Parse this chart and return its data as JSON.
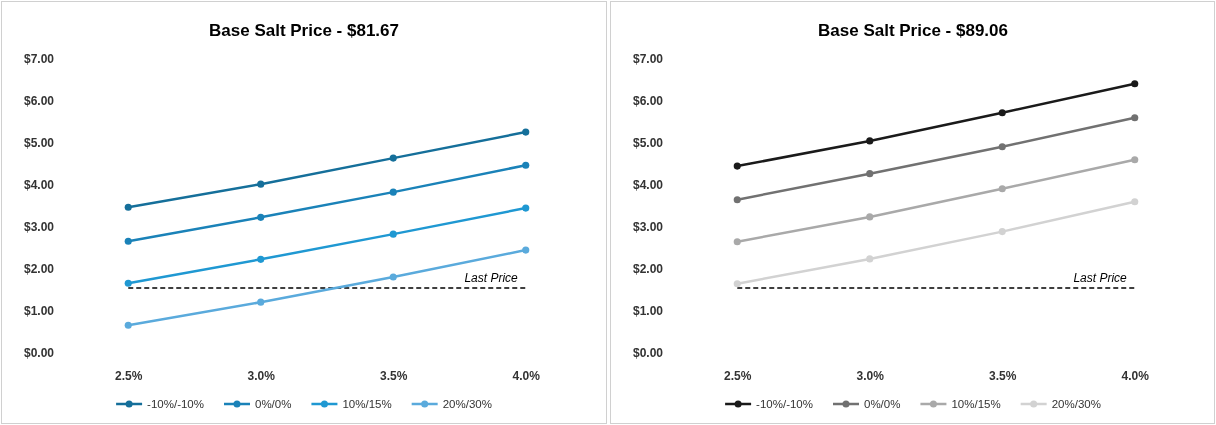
{
  "chart_data": [
    {
      "type": "line",
      "title": "Base Salt Price - $81.67",
      "categories": [
        "2.5%",
        "3.0%",
        "3.5%",
        "4.0%"
      ],
      "series": [
        {
          "name": "-10%/-10%",
          "color": "#156f9a",
          "values": [
            3.47,
            4.02,
            4.64,
            5.26
          ]
        },
        {
          "name": "0%/0%",
          "color": "#1a82b8",
          "values": [
            2.66,
            3.23,
            3.83,
            4.47
          ]
        },
        {
          "name": "10%/15%",
          "color": "#1f98d2",
          "values": [
            1.66,
            2.23,
            2.83,
            3.45
          ]
        },
        {
          "name": "20%/30%",
          "color": "#5aaadc",
          "values": [
            0.66,
            1.21,
            1.81,
            2.45
          ]
        }
      ],
      "ylim": [
        0,
        7
      ],
      "yticks": [
        {
          "value": 0,
          "label": "$0.00"
        },
        {
          "value": 1,
          "label": "$1.00"
        },
        {
          "value": 2,
          "label": "$2.00"
        },
        {
          "value": 3,
          "label": "$3.00"
        },
        {
          "value": 4,
          "label": "$4.00"
        },
        {
          "value": 5,
          "label": "$5.00"
        },
        {
          "value": 6,
          "label": "$6.00"
        },
        {
          "value": 7,
          "label": "$7.00"
        }
      ],
      "ref_lines": [
        {
          "axis": "y",
          "value": 1.55,
          "label": "Last Price",
          "color": "#000000",
          "line_style": "dashed"
        }
      ],
      "grid": false,
      "legend": "bottom",
      "marker": "circle",
      "line_style": "solid"
    },
    {
      "type": "line",
      "title": "Base Salt Price - $89.06",
      "categories": [
        "2.5%",
        "3.0%",
        "3.5%",
        "4.0%"
      ],
      "series": [
        {
          "name": "-10%/-10%",
          "color": "#1a1a1a",
          "values": [
            4.45,
            5.05,
            5.72,
            6.41
          ]
        },
        {
          "name": "0%/0%",
          "color": "#717171",
          "values": [
            3.65,
            4.27,
            4.91,
            5.6
          ]
        },
        {
          "name": "10%/15%",
          "color": "#a9a9a9",
          "values": [
            2.65,
            3.24,
            3.91,
            4.6
          ]
        },
        {
          "name": "20%/30%",
          "color": "#d2d2d2",
          "values": [
            1.65,
            2.24,
            2.89,
            3.6
          ]
        }
      ],
      "ylim": [
        0,
        7
      ],
      "yticks": [
        {
          "value": 0,
          "label": "$0.00"
        },
        {
          "value": 1,
          "label": "$1.00"
        },
        {
          "value": 2,
          "label": "$2.00"
        },
        {
          "value": 3,
          "label": "$3.00"
        },
        {
          "value": 4,
          "label": "$4.00"
        },
        {
          "value": 5,
          "label": "$5.00"
        },
        {
          "value": 6,
          "label": "$6.00"
        },
        {
          "value": 7,
          "label": "$7.00"
        }
      ],
      "ref_lines": [
        {
          "axis": "y",
          "value": 1.55,
          "label": "Last Price",
          "color": "#000000",
          "line_style": "dashed"
        }
      ],
      "grid": false,
      "legend": "bottom",
      "marker": "circle",
      "line_style": "solid"
    }
  ]
}
